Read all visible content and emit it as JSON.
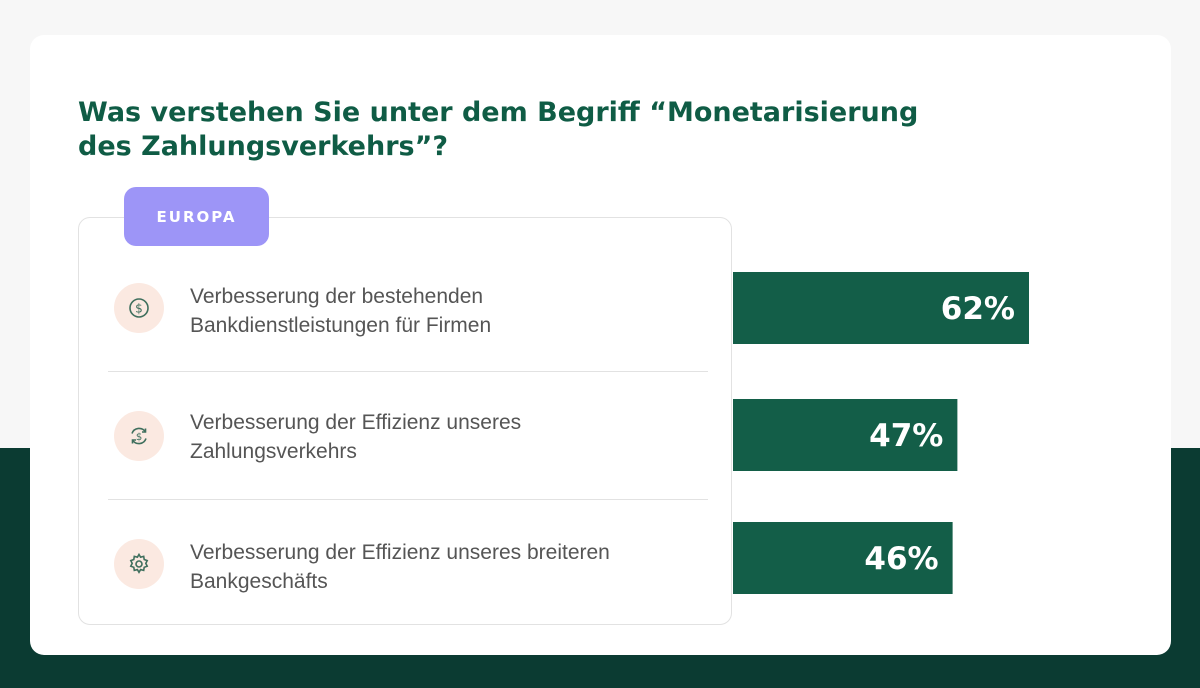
{
  "title": "Was verstehen Sie unter dem Begriff “Monetarisierung des Zahlungsverkehrs”?",
  "region_badge": "EUROPA",
  "chart_data": {
    "type": "bar",
    "orientation": "horizontal",
    "categories": [
      "Verbesserung der bestehenden Bankdienstleistungen für Firmen",
      "Verbesserung der Effizienz unseres Zahlungsverkehrs",
      "Verbesserung der Effizienz unseres breiteren Bankgeschäfts"
    ],
    "values": [
      62,
      47,
      46
    ],
    "value_labels": [
      "62%",
      "47%",
      "46%"
    ],
    "icons": [
      "dollar-coin-icon",
      "dollar-cycle-icon",
      "gear-icon"
    ],
    "unit": "%",
    "bar_color": "#135e48",
    "grid": false
  },
  "colors": {
    "title": "#0f5c45",
    "badge": "#9d95f7",
    "icon_bg": "#fbe9e1",
    "band": "#0b3b32"
  }
}
